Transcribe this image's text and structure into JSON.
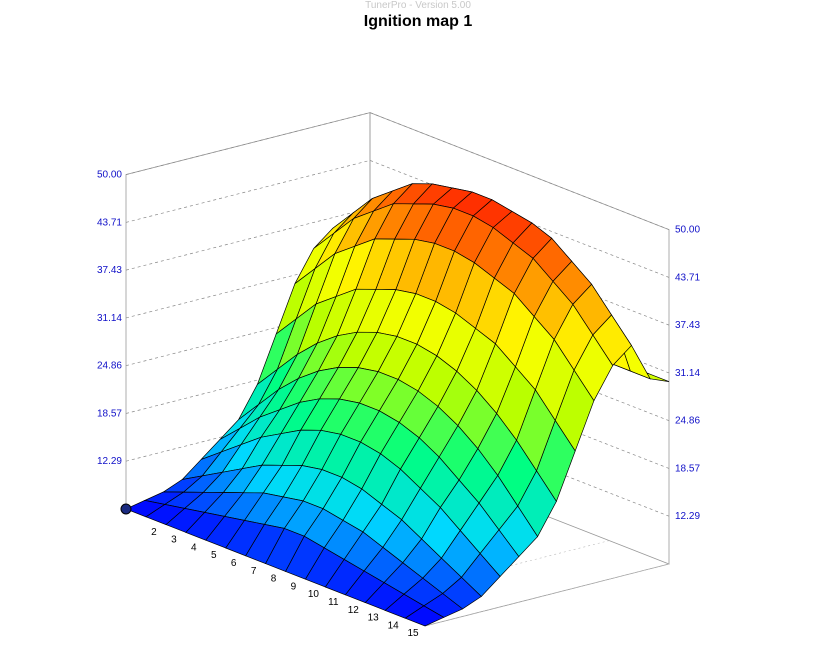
{
  "window": {
    "watermark": "TunerPro - Version 5.00"
  },
  "chart_data": {
    "type": "surface3d",
    "title": "Ignition map 1",
    "zlim": [
      6.0,
      50.0
    ],
    "z_ticks": [
      "12.29",
      "18.57",
      "24.86",
      "31.14",
      "37.43",
      "43.71",
      "50.00"
    ],
    "x_ticks": [
      "2",
      "3",
      "4",
      "5",
      "6",
      "7",
      "8",
      "9",
      "10",
      "11",
      "12",
      "13",
      "14",
      "15"
    ],
    "grid": "dashed",
    "colorscale": [
      "#0000ff",
      "#00d8ff",
      "#00ff80",
      "#b8ff00",
      "#ffff00",
      "#ff8000",
      "#ff0000"
    ],
    "z": [
      [
        6,
        6,
        6,
        6,
        6,
        6,
        6,
        6,
        6,
        6,
        6,
        6,
        6,
        6,
        6,
        6
      ],
      [
        6.5,
        7,
        7.5,
        8,
        8.5,
        9,
        9.5,
        10,
        10,
        9.5,
        9,
        8.5,
        8,
        7.5,
        7,
        6.5
      ],
      [
        7,
        8,
        9,
        10,
        11,
        12,
        12.5,
        13,
        13,
        12.5,
        12,
        11,
        10,
        9,
        8,
        7
      ],
      [
        8,
        9.5,
        11,
        12.5,
        14,
        15,
        16,
        16.5,
        16.5,
        16,
        15,
        14,
        12.5,
        11,
        9.5,
        8
      ],
      [
        10,
        12,
        14,
        16,
        17.5,
        19,
        20,
        20.5,
        20.5,
        20,
        19,
        17.5,
        16,
        14,
        12,
        10
      ],
      [
        12,
        14.5,
        17,
        19,
        21,
        22.5,
        23.5,
        24,
        24,
        23.5,
        22.5,
        21,
        19,
        17,
        14.5,
        12
      ],
      [
        14,
        17,
        20,
        22.5,
        24.5,
        26,
        27,
        27.5,
        27.5,
        27,
        26,
        24.5,
        22.5,
        20,
        17,
        14
      ],
      [
        18,
        21,
        24,
        26.5,
        28.5,
        30,
        31,
        31.5,
        31.5,
        31,
        30,
        28.5,
        26.5,
        24,
        21,
        18
      ],
      [
        24,
        27,
        30,
        32,
        34,
        35,
        36,
        36.5,
        36.5,
        36,
        35,
        34,
        32,
        30,
        27,
        24
      ],
      [
        30,
        33,
        36,
        38,
        40,
        41,
        42,
        42.5,
        42.5,
        42,
        41,
        40,
        38,
        36,
        33,
        30
      ],
      [
        34,
        37,
        40,
        42,
        44,
        45,
        46,
        46.5,
        46.5,
        46,
        45,
        44,
        42,
        40,
        37,
        34
      ],
      [
        36,
        39,
        42,
        44,
        46,
        47,
        47.5,
        48,
        48,
        47.5,
        47,
        46,
        44,
        42,
        39,
        36
      ],
      [
        33,
        33,
        33,
        32.5,
        32.5,
        32.5,
        32,
        32,
        32,
        32,
        31.5,
        31.5,
        31.5,
        31,
        31,
        31
      ],
      [
        31,
        31,
        31,
        31,
        31,
        30.5,
        30.5,
        30.5,
        30.5,
        30.5,
        30,
        30,
        30,
        30,
        30,
        30
      ]
    ]
  }
}
